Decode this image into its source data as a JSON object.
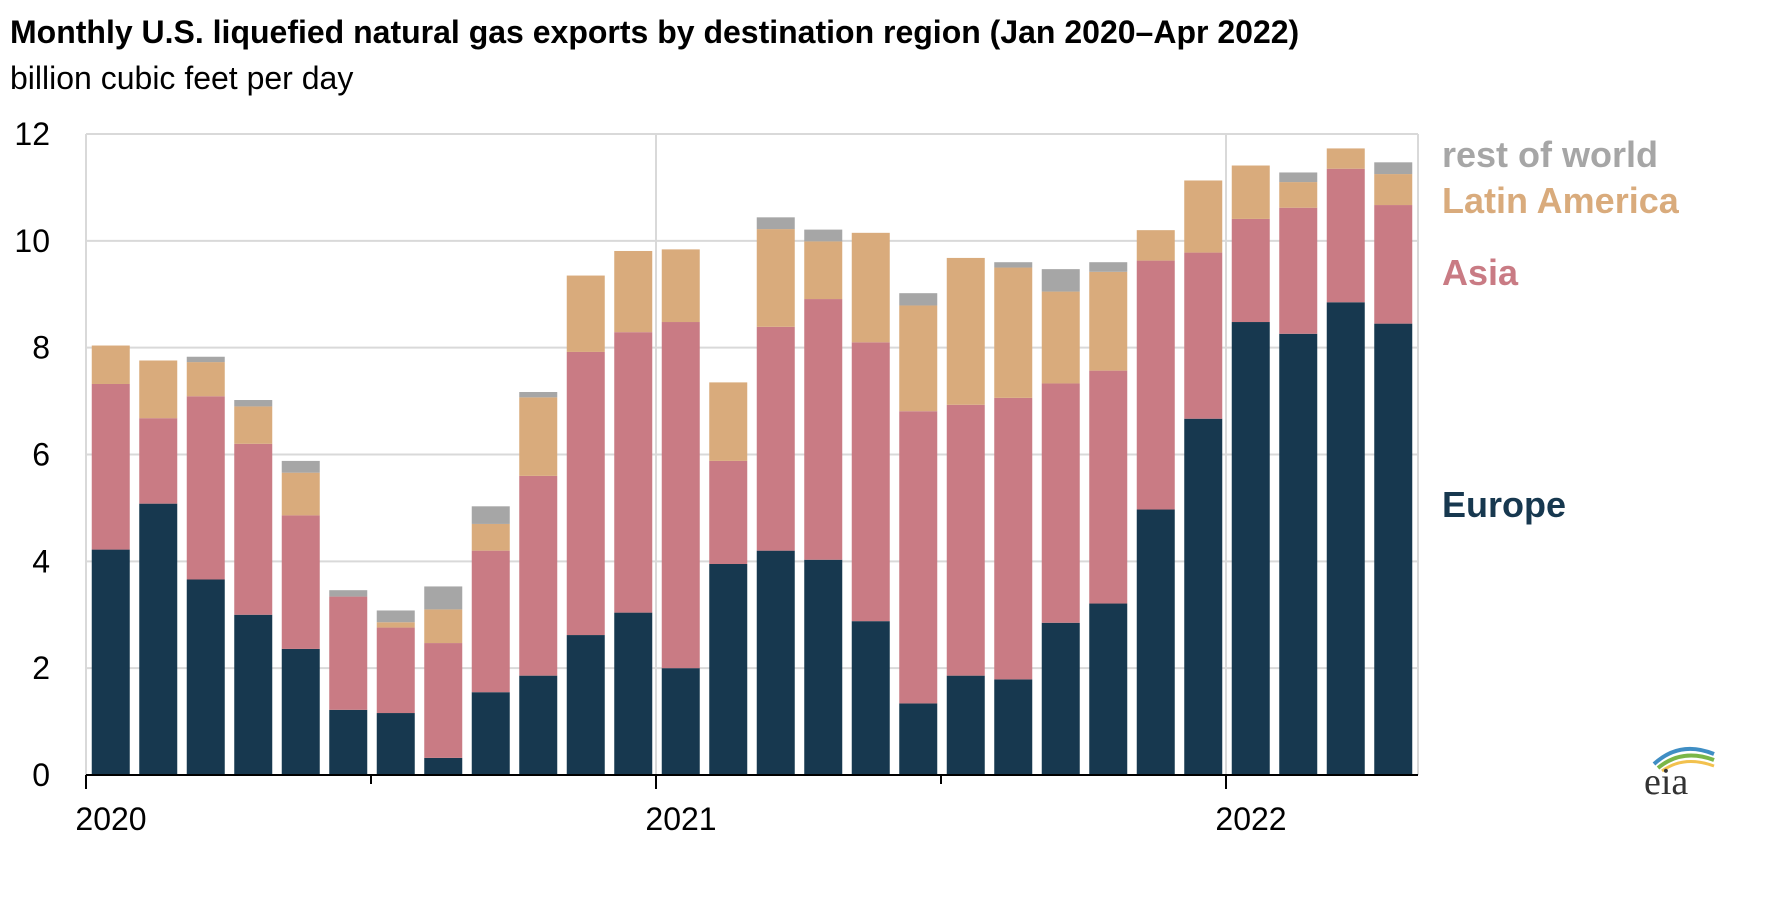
{
  "title": "Monthly U.S. liquefied natural gas exports by destination region (Jan 2020–Apr 2022)",
  "subtitle": "billion cubic feet per day",
  "logo_text": "eia",
  "chart_data": {
    "type": "bar",
    "stacked": true,
    "categories": [
      "Jan 2020",
      "Feb 2020",
      "Mar 2020",
      "Apr 2020",
      "May 2020",
      "Jun 2020",
      "Jul 2020",
      "Aug 2020",
      "Sep 2020",
      "Oct 2020",
      "Nov 2020",
      "Dec 2020",
      "Jan 2021",
      "Feb 2021",
      "Mar 2021",
      "Apr 2021",
      "May 2021",
      "Jun 2021",
      "Jul 2021",
      "Aug 2021",
      "Sep 2021",
      "Oct 2021",
      "Nov 2021",
      "Dec 2021",
      "Jan 2022",
      "Feb 2022",
      "Mar 2022",
      "Apr 2022"
    ],
    "series": [
      {
        "name": "Europe",
        "color": "#17384f",
        "values": [
          4.22,
          5.08,
          3.66,
          3.0,
          2.36,
          1.22,
          1.16,
          0.32,
          1.55,
          1.86,
          2.62,
          3.04,
          2.0,
          3.95,
          4.2,
          4.03,
          2.88,
          1.34,
          1.86,
          1.79,
          2.85,
          3.21,
          4.97,
          6.67,
          8.48,
          8.26,
          8.85,
          8.45
        ]
      },
      {
        "name": "Asia",
        "color": "#c97b84",
        "values": [
          3.1,
          1.6,
          3.43,
          3.2,
          2.5,
          2.12,
          1.6,
          2.15,
          2.65,
          3.74,
          5.3,
          5.25,
          6.48,
          1.93,
          4.19,
          4.88,
          5.22,
          5.47,
          5.07,
          5.27,
          4.48,
          4.36,
          4.66,
          3.11,
          1.93,
          2.36,
          2.5,
          2.22
        ]
      },
      {
        "name": "Latin America",
        "color": "#d9ab7c",
        "values": [
          0.72,
          1.08,
          0.64,
          0.7,
          0.8,
          0.0,
          0.1,
          0.63,
          0.5,
          1.47,
          1.43,
          1.52,
          1.36,
          1.47,
          1.83,
          1.08,
          2.05,
          1.98,
          2.75,
          2.44,
          1.72,
          1.85,
          0.57,
          1.35,
          1.0,
          0.48,
          0.38,
          0.58
        ]
      },
      {
        "name": "rest of world",
        "color": "#a6a6a6",
        "values": [
          0.0,
          0.0,
          0.1,
          0.12,
          0.22,
          0.12,
          0.22,
          0.43,
          0.33,
          0.1,
          0.0,
          0.0,
          0.0,
          0.0,
          0.22,
          0.22,
          0.0,
          0.23,
          0.0,
          0.1,
          0.42,
          0.18,
          0.0,
          0.0,
          0.0,
          0.18,
          0.0,
          0.22
        ]
      }
    ],
    "x_tick_labels": [
      "2020",
      "2021",
      "2022"
    ],
    "y_ticks": [
      0,
      2,
      4,
      6,
      8,
      10,
      12
    ],
    "ylim": [
      0,
      12
    ],
    "xlabel": "",
    "ylabel": "",
    "grid": true,
    "legend": "right"
  }
}
